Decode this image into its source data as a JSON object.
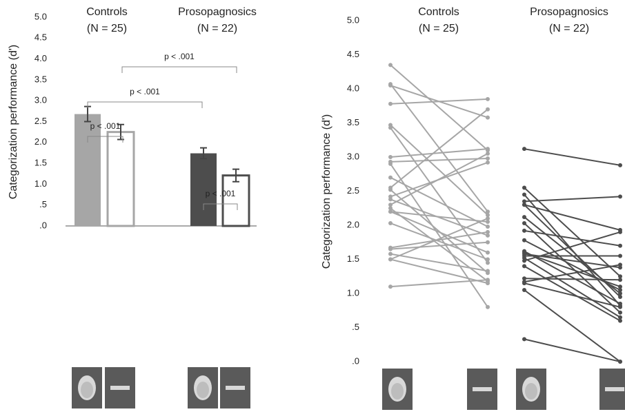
{
  "chart_data": [
    {
      "type": "bar",
      "y_label": "Categorization performance (d')",
      "groups": [
        {
          "label": "Controls",
          "n_label": "(N = 25)"
        },
        {
          "label": "Prosopagnosics",
          "n_label": "(N = 22)"
        }
      ],
      "values": [
        2.68,
        2.25,
        1.74,
        1.21
      ],
      "errors": [
        0.18,
        0.18,
        0.13,
        0.15
      ],
      "colors": [
        "#a6a6a6",
        "#a6a6a6",
        "#4d4d4d",
        "#4d4d4d"
      ],
      "filled": [
        true,
        false,
        true,
        false
      ],
      "annotations": [
        "p < .001",
        "p < .001",
        "p < .001",
        "p < .001"
      ],
      "ylim": [
        0,
        5
      ],
      "yticks": [
        {
          "value": 0,
          "label": ".0"
        },
        {
          "value": 0.5,
          "label": ".5"
        },
        {
          "value": 1,
          "label": "1.0"
        },
        {
          "value": 1.5,
          "label": "1.5"
        },
        {
          "value": 2,
          "label": "2.0"
        },
        {
          "value": 2.5,
          "label": "2.5"
        },
        {
          "value": 3,
          "label": "3.0"
        },
        {
          "value": 3.5,
          "label": "3.5"
        },
        {
          "value": 4,
          "label": "4.0"
        },
        {
          "value": 4.5,
          "label": "4.5"
        },
        {
          "value": 5,
          "label": "5.0"
        }
      ]
    },
    {
      "type": "slope",
      "y_label": "Categorization performance (d')",
      "groups": [
        {
          "label": "Controls",
          "n_label": "(N = 25)",
          "color": "#a6a6a6",
          "face": [
            4.35,
            4.07,
            4.05,
            3.78,
            3.47,
            3.43,
            3.0,
            2.93,
            2.7,
            2.55,
            2.52,
            2.42,
            2.38,
            2.3,
            2.25,
            2.2,
            2.2,
            2.03,
            1.67,
            1.65,
            1.58,
            1.5,
            1.5,
            1.1,
            2.9
          ],
          "object": [
            3.1,
            2.2,
            3.58,
            3.85,
            2.15,
            1.45,
            3.12,
            2.98,
            1.98,
            3.7,
            1.3,
            2.92,
            1.85,
            3.05,
            1.18,
            2.05,
            1.6,
            1.5,
            1.9,
            1.75,
            1.33,
            2.1,
            1.15,
            1.2,
            0.8
          ]
        },
        {
          "label": "Prosopagnosics",
          "n_label": "(N = 22)",
          "color": "#4d4d4d",
          "face": [
            3.12,
            2.55,
            2.45,
            2.35,
            2.3,
            2.3,
            2.12,
            2.03,
            1.92,
            1.78,
            1.62,
            1.58,
            1.55,
            1.52,
            1.48,
            1.4,
            1.22,
            1.17,
            1.15,
            1.05,
            0.33,
            1.6
          ],
          "object": [
            2.88,
            1.25,
            0.82,
            2.42,
            1.93,
            0.95,
            1.0,
            0.72,
            1.7,
            1.05,
            0.85,
            1.38,
            1.55,
            0.65,
            1.9,
            0.6,
            1.2,
            1.42,
            0.8,
            0.0,
            0.0,
            1.1
          ]
        }
      ],
      "ylim": [
        0,
        5
      ],
      "yticks": [
        {
          "value": 0,
          "label": ".0"
        },
        {
          "value": 0.5,
          "label": ".5"
        },
        {
          "value": 1,
          "label": "1.0"
        },
        {
          "value": 1.5,
          "label": "1.5"
        },
        {
          "value": 2,
          "label": "2.0"
        },
        {
          "value": 2.5,
          "label": "2.5"
        },
        {
          "value": 3,
          "label": "3.0"
        },
        {
          "value": 3.5,
          "label": "3.5"
        },
        {
          "value": 4,
          "label": "4.0"
        },
        {
          "value": 4.5,
          "label": "4.5"
        },
        {
          "value": 5,
          "label": "5.0"
        }
      ]
    }
  ]
}
